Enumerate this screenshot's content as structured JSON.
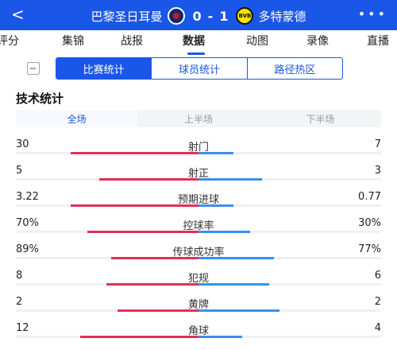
{
  "header": {
    "back_glyph": "<",
    "home_team": "巴黎圣日耳曼",
    "away_team": "多特蒙德",
    "home_score": "0",
    "separator": "-",
    "away_score": "1",
    "away_crest_text": "BVB",
    "more_glyph": "•••"
  },
  "nav_tabs": [
    {
      "label": "评分"
    },
    {
      "label": "集锦"
    },
    {
      "label": "战报"
    },
    {
      "label": "数据"
    },
    {
      "label": "动图"
    },
    {
      "label": "录像"
    },
    {
      "label": "直播"
    }
  ],
  "segment": [
    {
      "label": "比赛统计"
    },
    {
      "label": "球员统计"
    },
    {
      "label": "路径热区"
    }
  ],
  "section_title": "技术统计",
  "periods": [
    {
      "label": "全场"
    },
    {
      "label": "上半场"
    },
    {
      "label": "下半场"
    }
  ],
  "colors": {
    "accent": "#1a56e8",
    "home_bar": "#e0305a",
    "away_bar": "#3b8ff0"
  },
  "stats": [
    {
      "name": "射门",
      "left": "30",
      "right": "7",
      "left_share": 0.81,
      "right_share": 0.19
    },
    {
      "name": "射正",
      "left": "5",
      "right": "3",
      "left_share": 0.62,
      "right_share": 0.38
    },
    {
      "name": "预期进球",
      "left": "3.22",
      "right": "0.77",
      "left_share": 0.81,
      "right_share": 0.19
    },
    {
      "name": "控球率",
      "left": "70%",
      "right": "30%",
      "left_share": 0.7,
      "right_share": 0.3
    },
    {
      "name": "传球成功率",
      "left": "89%",
      "right": "77%",
      "left_share": 0.54,
      "right_share": 0.46
    },
    {
      "name": "犯规",
      "left": "8",
      "right": "6",
      "left_share": 0.57,
      "right_share": 0.43
    },
    {
      "name": "黄牌",
      "left": "2",
      "right": "2",
      "left_share": 0.5,
      "right_share": 0.5
    },
    {
      "name": "角球",
      "left": "12",
      "right": "4",
      "left_share": 0.75,
      "right_share": 0.25
    }
  ]
}
